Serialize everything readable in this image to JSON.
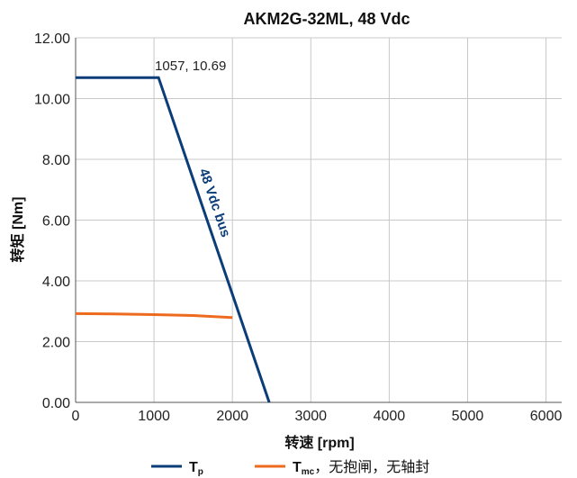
{
  "chart_data": {
    "type": "line",
    "title": "AKM2G-32ML, 48 Vdc",
    "xlabel": "转速 [rpm]",
    "ylabel": "转矩 [Nm]",
    "xlim": [
      0,
      6200
    ],
    "ylim": [
      0,
      12
    ],
    "xticks": [
      0,
      1000,
      2000,
      3000,
      4000,
      5000,
      6000
    ],
    "xtick_labels": [
      "0",
      "1000",
      "2000",
      "3000",
      "4000",
      "5000",
      "6000"
    ],
    "yticks": [
      0,
      2,
      4,
      6,
      8,
      10,
      12
    ],
    "ytick_labels": [
      "0.00",
      "2.00",
      "4.00",
      "6.00",
      "8.00",
      "10.00",
      "12.00"
    ],
    "grid": true,
    "legend_position": "bottom",
    "series": [
      {
        "key": "tp",
        "legend_main": "T",
        "legend_sub": "p",
        "legend_rest": "",
        "color": "#0b3d78",
        "points": [
          [
            0,
            10.69
          ],
          [
            1057,
            10.69
          ],
          [
            2470,
            0
          ]
        ]
      },
      {
        "key": "tmc",
        "legend_main": "T",
        "legend_sub": "mc",
        "legend_rest": "，无抱闸，无轴封",
        "color": "#ee6a1f",
        "points": [
          [
            0,
            2.92
          ],
          [
            500,
            2.91
          ],
          [
            1000,
            2.89
          ],
          [
            1500,
            2.86
          ],
          [
            2000,
            2.79
          ]
        ]
      }
    ],
    "annotations": [
      {
        "text": "1057, 10.69",
        "x": 1057,
        "y": 10.69
      },
      {
        "text": "48 Vdc bus"
      }
    ]
  }
}
